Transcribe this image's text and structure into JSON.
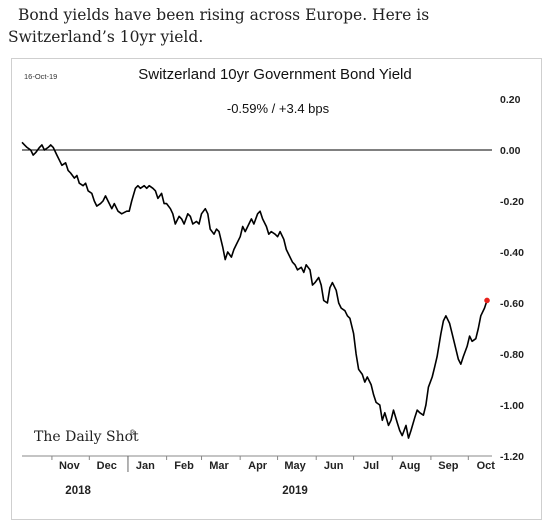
{
  "caption": "Bond yields have been rising across Europe. Here is Switzerland’s 10yr yield.",
  "chart_data": {
    "type": "line",
    "date_stamp": "16-Oct-19",
    "title": "Switzerland 10yr Government Bond Yield",
    "subtitle": "-0.59%  /  +3.4 bps",
    "source_logo": "The Daily Shot",
    "source_logo_mark": "®",
    "y_axis_side": "right",
    "ylim": [
      -1.2,
      0.2
    ],
    "y_ticks": [
      0.2,
      0.0,
      -0.2,
      -0.4,
      -0.6,
      -0.8,
      -1.0,
      -1.2
    ],
    "y_tick_labels": [
      "0.20",
      "0.00",
      "-0.20",
      "-0.40",
      "-0.60",
      "-0.80",
      "-1.00",
      "-1.20"
    ],
    "zero_line": true,
    "grid": false,
    "xlim": [
      "2018-10-08",
      "2019-10-20"
    ],
    "months": [
      {
        "label": "Nov",
        "date": "2018-11-15"
      },
      {
        "label": "Dec",
        "date": "2018-12-15"
      },
      {
        "label": "Jan",
        "date": "2019-01-15"
      },
      {
        "label": "Feb",
        "date": "2019-02-15"
      },
      {
        "label": "Mar",
        "date": "2019-03-15"
      },
      {
        "label": "Apr",
        "date": "2019-04-15"
      },
      {
        "label": "May",
        "date": "2019-05-15"
      },
      {
        "label": "Jun",
        "date": "2019-06-15"
      },
      {
        "label": "Jul",
        "date": "2019-07-15"
      },
      {
        "label": "Aug",
        "date": "2019-08-15"
      },
      {
        "label": "Sep",
        "date": "2019-09-15"
      },
      {
        "label": "Oct",
        "date": "2019-10-15"
      }
    ],
    "month_ticks": [
      "2018-11-01",
      "2018-12-01",
      "2019-01-01",
      "2019-02-01",
      "2019-03-01",
      "2019-04-01",
      "2019-05-01",
      "2019-06-01",
      "2019-07-01",
      "2019-08-01",
      "2019-09-01",
      "2019-10-01"
    ],
    "year_divider": "2019-01-01",
    "years": [
      {
        "label": "2018",
        "date": "2018-11-22"
      },
      {
        "label": "2019",
        "date": "2019-05-15"
      }
    ],
    "line_color": "#000000",
    "marker_color": "#e8201a",
    "series": [
      {
        "points": [
          [
            "2018-10-08",
            0.03
          ],
          [
            "2018-10-10",
            0.02
          ],
          [
            "2018-10-12",
            0.01
          ],
          [
            "2018-10-15",
            0.0
          ],
          [
            "2018-10-17",
            -0.02
          ],
          [
            "2018-10-19",
            -0.01
          ],
          [
            "2018-10-22",
            0.01
          ],
          [
            "2018-10-24",
            0.02
          ],
          [
            "2018-10-26",
            0.0
          ],
          [
            "2018-10-29",
            0.01
          ],
          [
            "2018-10-31",
            0.02
          ],
          [
            "2018-11-02",
            0.01
          ],
          [
            "2018-11-05",
            -0.02
          ],
          [
            "2018-11-07",
            -0.04
          ],
          [
            "2018-11-09",
            -0.06
          ],
          [
            "2018-11-12",
            -0.05
          ],
          [
            "2018-11-14",
            -0.08
          ],
          [
            "2018-11-16",
            -0.09
          ],
          [
            "2018-11-19",
            -0.11
          ],
          [
            "2018-11-21",
            -0.1
          ],
          [
            "2018-11-23",
            -0.13
          ],
          [
            "2018-11-26",
            -0.14
          ],
          [
            "2018-11-28",
            -0.13
          ],
          [
            "2018-11-30",
            -0.16
          ],
          [
            "2018-12-03",
            -0.17
          ],
          [
            "2018-12-05",
            -0.2
          ],
          [
            "2018-12-07",
            -0.22
          ],
          [
            "2018-12-10",
            -0.21
          ],
          [
            "2018-12-12",
            -0.2
          ],
          [
            "2018-12-14",
            -0.18
          ],
          [
            "2018-12-17",
            -0.21
          ],
          [
            "2018-12-19",
            -0.23
          ],
          [
            "2018-12-21",
            -0.21
          ],
          [
            "2018-12-24",
            -0.24
          ],
          [
            "2018-12-27",
            -0.25
          ],
          [
            "2018-12-31",
            -0.24
          ],
          [
            "2019-01-02",
            -0.24
          ],
          [
            "2019-01-04",
            -0.2
          ],
          [
            "2019-01-07",
            -0.15
          ],
          [
            "2019-01-09",
            -0.14
          ],
          [
            "2019-01-11",
            -0.15
          ],
          [
            "2019-01-14",
            -0.14
          ],
          [
            "2019-01-16",
            -0.15
          ],
          [
            "2019-01-18",
            -0.14
          ],
          [
            "2019-01-21",
            -0.15
          ],
          [
            "2019-01-23",
            -0.16
          ],
          [
            "2019-01-25",
            -0.19
          ],
          [
            "2019-01-28",
            -0.17
          ],
          [
            "2019-01-30",
            -0.21
          ],
          [
            "2019-02-01",
            -0.21
          ],
          [
            "2019-02-04",
            -0.23
          ],
          [
            "2019-02-06",
            -0.25
          ],
          [
            "2019-02-08",
            -0.29
          ],
          [
            "2019-02-11",
            -0.26
          ],
          [
            "2019-02-13",
            -0.27
          ],
          [
            "2019-02-15",
            -0.29
          ],
          [
            "2019-02-18",
            -0.25
          ],
          [
            "2019-02-20",
            -0.26
          ],
          [
            "2019-02-22",
            -0.29
          ],
          [
            "2019-02-25",
            -0.28
          ],
          [
            "2019-02-27",
            -0.29
          ],
          [
            "2019-03-01",
            -0.25
          ],
          [
            "2019-03-04",
            -0.23
          ],
          [
            "2019-03-06",
            -0.25
          ],
          [
            "2019-03-08",
            -0.31
          ],
          [
            "2019-03-11",
            -0.33
          ],
          [
            "2019-03-13",
            -0.31
          ],
          [
            "2019-03-15",
            -0.32
          ],
          [
            "2019-03-18",
            -0.38
          ],
          [
            "2019-03-20",
            -0.43
          ],
          [
            "2019-03-22",
            -0.4
          ],
          [
            "2019-03-25",
            -0.42
          ],
          [
            "2019-03-27",
            -0.39
          ],
          [
            "2019-03-29",
            -0.37
          ],
          [
            "2019-04-01",
            -0.34
          ],
          [
            "2019-04-03",
            -0.3
          ],
          [
            "2019-04-05",
            -0.32
          ],
          [
            "2019-04-08",
            -0.29
          ],
          [
            "2019-04-10",
            -0.27
          ],
          [
            "2019-04-12",
            -0.29
          ],
          [
            "2019-04-15",
            -0.25
          ],
          [
            "2019-04-17",
            -0.24
          ],
          [
            "2019-04-19",
            -0.27
          ],
          [
            "2019-04-22",
            -0.3
          ],
          [
            "2019-04-24",
            -0.33
          ],
          [
            "2019-04-26",
            -0.32
          ],
          [
            "2019-04-29",
            -0.33
          ],
          [
            "2019-05-01",
            -0.34
          ],
          [
            "2019-05-03",
            -0.32
          ],
          [
            "2019-05-06",
            -0.35
          ],
          [
            "2019-05-08",
            -0.39
          ],
          [
            "2019-05-10",
            -0.41
          ],
          [
            "2019-05-13",
            -0.44
          ],
          [
            "2019-05-15",
            -0.45
          ],
          [
            "2019-05-17",
            -0.47
          ],
          [
            "2019-05-20",
            -0.46
          ],
          [
            "2019-05-22",
            -0.48
          ],
          [
            "2019-05-24",
            -0.45
          ],
          [
            "2019-05-27",
            -0.47
          ],
          [
            "2019-05-29",
            -0.53
          ],
          [
            "2019-05-31",
            -0.52
          ],
          [
            "2019-06-03",
            -0.5
          ],
          [
            "2019-06-05",
            -0.53
          ],
          [
            "2019-06-07",
            -0.59
          ],
          [
            "2019-06-10",
            -0.6
          ],
          [
            "2019-06-12",
            -0.54
          ],
          [
            "2019-06-14",
            -0.52
          ],
          [
            "2019-06-17",
            -0.55
          ],
          [
            "2019-06-19",
            -0.6
          ],
          [
            "2019-06-21",
            -0.62
          ],
          [
            "2019-06-24",
            -0.63
          ],
          [
            "2019-06-26",
            -0.65
          ],
          [
            "2019-06-28",
            -0.66
          ],
          [
            "2019-07-01",
            -0.72
          ],
          [
            "2019-07-03",
            -0.8
          ],
          [
            "2019-07-05",
            -0.86
          ],
          [
            "2019-07-08",
            -0.88
          ],
          [
            "2019-07-10",
            -0.91
          ],
          [
            "2019-07-12",
            -0.89
          ],
          [
            "2019-07-15",
            -0.92
          ],
          [
            "2019-07-17",
            -0.96
          ],
          [
            "2019-07-19",
            -0.99
          ],
          [
            "2019-07-22",
            -1.0
          ],
          [
            "2019-07-24",
            -1.06
          ],
          [
            "2019-07-26",
            -1.03
          ],
          [
            "2019-07-29",
            -1.08
          ],
          [
            "2019-07-31",
            -1.06
          ],
          [
            "2019-08-02",
            -1.02
          ],
          [
            "2019-08-05",
            -1.07
          ],
          [
            "2019-08-07",
            -1.1
          ],
          [
            "2019-08-09",
            -1.12
          ],
          [
            "2019-08-12",
            -1.08
          ],
          [
            "2019-08-14",
            -1.13
          ],
          [
            "2019-08-16",
            -1.1
          ],
          [
            "2019-08-19",
            -1.05
          ],
          [
            "2019-08-21",
            -1.02
          ],
          [
            "2019-08-23",
            -1.03
          ],
          [
            "2019-08-26",
            -1.04
          ],
          [
            "2019-08-28",
            -1.0
          ],
          [
            "2019-08-30",
            -0.93
          ],
          [
            "2019-09-02",
            -0.89
          ],
          [
            "2019-09-04",
            -0.85
          ],
          [
            "2019-09-06",
            -0.81
          ],
          [
            "2019-09-09",
            -0.72
          ],
          [
            "2019-09-11",
            -0.67
          ],
          [
            "2019-09-13",
            -0.65
          ],
          [
            "2019-09-16",
            -0.68
          ],
          [
            "2019-09-18",
            -0.72
          ],
          [
            "2019-09-20",
            -0.76
          ],
          [
            "2019-09-23",
            -0.82
          ],
          [
            "2019-09-25",
            -0.84
          ],
          [
            "2019-09-27",
            -0.81
          ],
          [
            "2019-09-30",
            -0.77
          ],
          [
            "2019-10-02",
            -0.73
          ],
          [
            "2019-10-04",
            -0.75
          ],
          [
            "2019-10-07",
            -0.74
          ],
          [
            "2019-10-09",
            -0.7
          ],
          [
            "2019-10-11",
            -0.65
          ],
          [
            "2019-10-14",
            -0.62
          ],
          [
            "2019-10-16",
            -0.59
          ]
        ]
      }
    ]
  }
}
